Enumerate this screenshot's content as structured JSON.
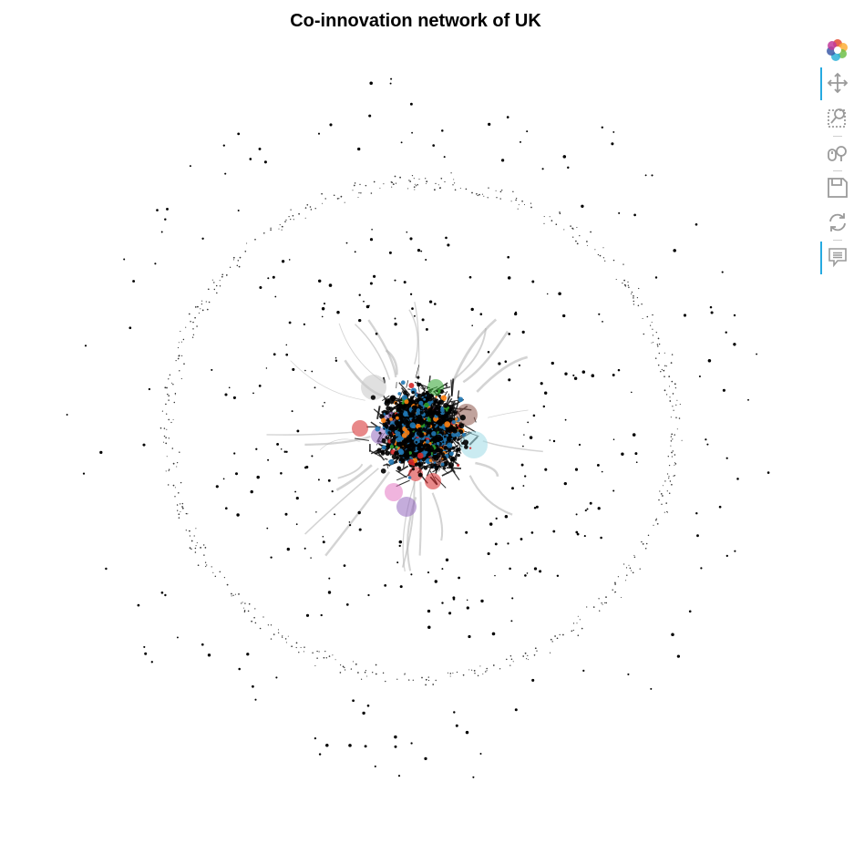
{
  "title": "Co-innovation network of UK",
  "toolbar": {
    "tools": [
      {
        "name": "bokeh-logo",
        "icon": "bokeh-logo-icon",
        "active": false
      },
      {
        "name": "pan-tool",
        "icon": "pan-icon",
        "active": true
      },
      {
        "name": "box-zoom-tool",
        "icon": "box-zoom-icon",
        "active": false
      },
      {
        "name": "wheel-zoom-tool",
        "icon": "wheel-zoom-icon",
        "active": false
      },
      {
        "name": "save-tool",
        "icon": "save-icon",
        "active": false
      },
      {
        "name": "reset-tool",
        "icon": "reset-icon",
        "active": false
      },
      {
        "name": "hover-tool",
        "icon": "hover-icon",
        "active": true
      }
    ]
  },
  "colors": {
    "node": "#000000",
    "edge": "#b0b0b0",
    "accent": "#26aae1",
    "community": [
      "#1f77b4",
      "#ff7f0e",
      "#2ca02c",
      "#d62728",
      "#9467bd",
      "#8c564b",
      "#e377c2",
      "#9edae5",
      "#c7c7c7",
      "#aec7e8"
    ]
  }
}
